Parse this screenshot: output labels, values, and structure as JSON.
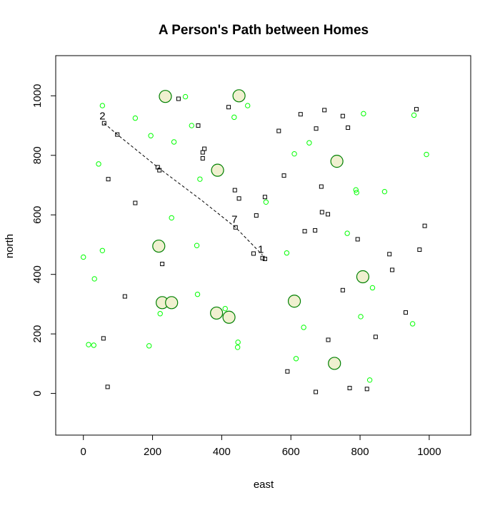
{
  "chart_data": {
    "type": "scatter",
    "title": "A Person's Path between Homes",
    "xlabel": "east",
    "ylabel": "north",
    "xlim": [
      -80,
      1120
    ],
    "ylim": [
      -140,
      1135
    ],
    "x_ticks": [
      0,
      200,
      400,
      600,
      800,
      1000
    ],
    "y_ticks": [
      0,
      200,
      400,
      600,
      800,
      1000
    ],
    "colors": {
      "square": "#000000",
      "small_circle": "#00ff00",
      "large_circle_stroke": "#008000",
      "large_circle_fill": "#f0f0d0",
      "path": "#000000"
    },
    "series": [
      {
        "name": "squares",
        "marker": "square",
        "points": [
          [
            60,
            908
          ],
          [
            98,
            870
          ],
          [
            72,
            720
          ],
          [
            150,
            640
          ],
          [
            215,
            760
          ],
          [
            220,
            750
          ],
          [
            275,
            990
          ],
          [
            332,
            900
          ],
          [
            350,
            822
          ],
          [
            345,
            810
          ],
          [
            345,
            790
          ],
          [
            420,
            962
          ],
          [
            438,
            683
          ],
          [
            450,
            655
          ],
          [
            492,
            470
          ],
          [
            500,
            598
          ],
          [
            518,
            455
          ],
          [
            525,
            660
          ],
          [
            525,
            452
          ],
          [
            440,
            558
          ],
          [
            565,
            882
          ],
          [
            580,
            732
          ],
          [
            628,
            938
          ],
          [
            640,
            545
          ],
          [
            670,
            548
          ],
          [
            673,
            890
          ],
          [
            688,
            695
          ],
          [
            690,
            609
          ],
          [
            697,
            952
          ],
          [
            707,
            602
          ],
          [
            750,
            932
          ],
          [
            765,
            893
          ],
          [
            793,
            518
          ],
          [
            885,
            468
          ],
          [
            893,
            415
          ],
          [
            963,
            955
          ],
          [
            972,
            483
          ],
          [
            987,
            563
          ],
          [
            932,
            272
          ],
          [
            845,
            190
          ],
          [
            750,
            347
          ],
          [
            708,
            180
          ],
          [
            590,
            74
          ],
          [
            672,
            5
          ],
          [
            770,
            18
          ],
          [
            820,
            15
          ],
          [
            70,
            22
          ],
          [
            58,
            185
          ],
          [
            120,
            326
          ],
          [
            228,
            435
          ]
        ]
      },
      {
        "name": "small circles",
        "marker": "small_circle",
        "points": [
          [
            55,
            967
          ],
          [
            150,
            925
          ],
          [
            195,
            866
          ],
          [
            262,
            845
          ],
          [
            295,
            997
          ],
          [
            313,
            900
          ],
          [
            337,
            720
          ],
          [
            44,
            771
          ],
          [
            0,
            458
          ],
          [
            55,
            480
          ],
          [
            32,
            385
          ],
          [
            190,
            160
          ],
          [
            15,
            164
          ],
          [
            30,
            162
          ],
          [
            255,
            590
          ],
          [
            328,
            497
          ],
          [
            330,
            333
          ],
          [
            222,
            268
          ],
          [
            410,
            285
          ],
          [
            436,
            928
          ],
          [
            475,
            967
          ],
          [
            528,
            643
          ],
          [
            588,
            472
          ],
          [
            610,
            805
          ],
          [
            653,
            842
          ],
          [
            637,
            222
          ],
          [
            615,
            117
          ],
          [
            446,
            155
          ],
          [
            447,
            172
          ],
          [
            763,
            538
          ],
          [
            788,
            684
          ],
          [
            790,
            675
          ],
          [
            810,
            940
          ],
          [
            871,
            678
          ],
          [
            956,
            935
          ],
          [
            992,
            803
          ],
          [
            802,
            258
          ],
          [
            836,
            355
          ],
          [
            952,
            234
          ],
          [
            828,
            45
          ]
        ]
      },
      {
        "name": "homes",
        "marker": "large_circle",
        "points": [
          [
            237,
            998
          ],
          [
            450,
            1000
          ],
          [
            388,
            750
          ],
          [
            218,
            495
          ],
          [
            228,
            305
          ],
          [
            255,
            305
          ],
          [
            385,
            270
          ],
          [
            421,
            256
          ],
          [
            610,
            310
          ],
          [
            733,
            780
          ],
          [
            808,
            392
          ],
          [
            726,
            101
          ]
        ]
      }
    ],
    "path": {
      "style": "dashed",
      "points": [
        [
          60,
          908
        ],
        [
          98,
          870
        ],
        [
          215,
          760
        ],
        [
          345,
          646
        ],
        [
          440,
          558
        ],
        [
          518,
          465
        ]
      ]
    },
    "path_labels": [
      {
        "text": "2",
        "x": 55,
        "y": 920
      },
      {
        "text": "7",
        "x": 437,
        "y": 573
      },
      {
        "text": "1",
        "x": 513,
        "y": 472
      }
    ]
  }
}
